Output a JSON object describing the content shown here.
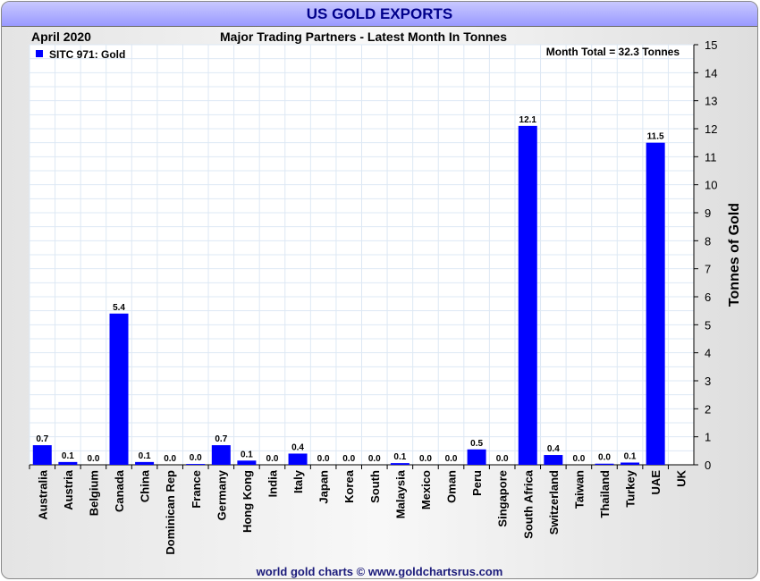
{
  "chart_data": {
    "type": "bar",
    "title": "US GOLD EXPORTS",
    "period": "April 2020",
    "subtitle": "Major Trading Partners - Latest Month In Tonnes",
    "legend": {
      "label": "SITC 971: Gold",
      "placement": "top-left"
    },
    "annotation": "Month Total = 32.3 Tonnes",
    "ylabel": "Tonnes of Gold",
    "ylim": [
      0,
      15
    ],
    "yticks": [
      "0",
      "1",
      "2",
      "3",
      "4",
      "5",
      "6",
      "7",
      "8",
      "9",
      "10",
      "11",
      "12",
      "13",
      "14",
      "15"
    ],
    "grid": true,
    "color": "#0000ff",
    "categories": [
      "Australia",
      "Austria",
      "Belgium",
      "Canada",
      "China",
      "Dominican Rep",
      "France",
      "Germany",
      "Hong Kong",
      "India",
      "Italy",
      "Japan",
      "Korea",
      "South",
      "Malaysia",
      "Mexico",
      "Oman",
      "Peru",
      "Singapore",
      "South Africa",
      "Switzerland",
      "Taiwan",
      "Thailand",
      "Turkey",
      "UAE",
      "UK"
    ],
    "values": [
      0.7,
      0.1,
      0.0,
      5.4,
      0.1,
      0.0,
      0.03,
      0.7,
      0.15,
      0.0,
      0.4,
      0.0,
      0.0,
      0.0,
      0.06,
      0.0,
      0.0,
      0.55,
      0.0,
      12.1,
      0.35,
      0.0,
      0.04,
      0.08,
      11.5,
      null
    ],
    "labels": [
      "0.7",
      "0.1",
      "0.0",
      "5.4",
      "0.1",
      "0.0",
      "0.0",
      "0.7",
      "0.1",
      "0.0",
      "0.4",
      "0.0",
      "0.0",
      "0.0",
      "0.1",
      "0.0",
      "0.0",
      "0.5",
      "0.0",
      "12.1",
      "0.4",
      "0.0",
      "0.0",
      "0.1",
      "11.5",
      ""
    ]
  },
  "footer": "world gold charts © www.goldchartsrus.com"
}
